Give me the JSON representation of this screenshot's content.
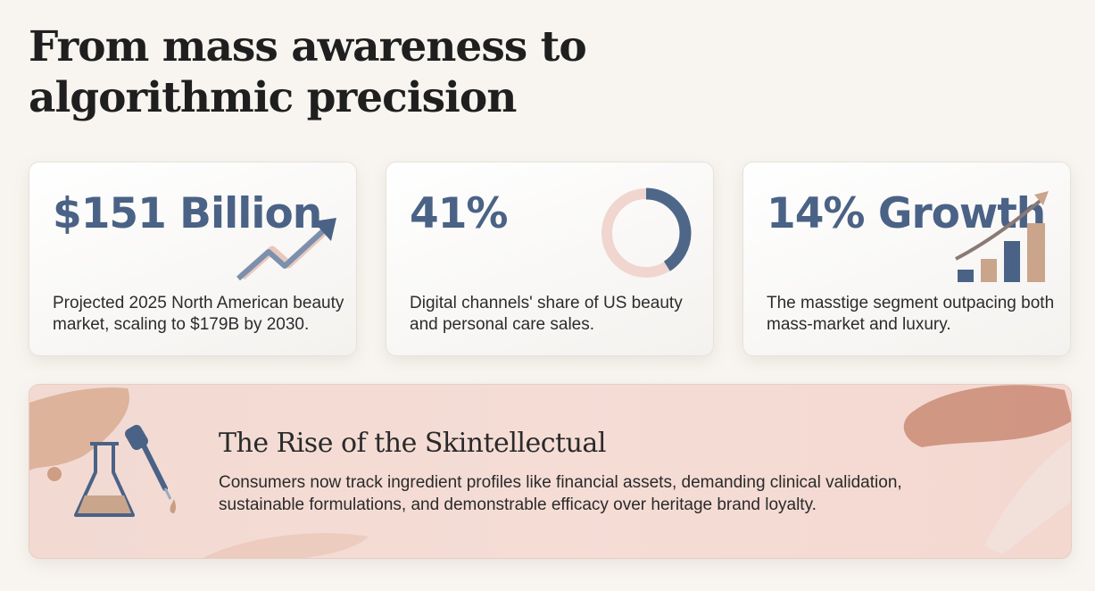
{
  "page": {
    "title": "From mass awareness to algorithmic precision"
  },
  "cards": [
    {
      "metric": "$151 Billion",
      "description": "Projected 2025 North American beauty market, scaling to $179B by 2030.",
      "icon": "trend-arrow-icon"
    },
    {
      "metric": "41%",
      "description": "Digital channels' share of US beauty and personal care sales.",
      "icon": "donut-ring-icon",
      "share_fraction": 0.41
    },
    {
      "metric": "14% Growth",
      "description": "The masstige segment outpacing both mass-market and luxury.",
      "icon": "growth-bars-icon"
    }
  ],
  "banner": {
    "title": "The Rise of the Skintellectual",
    "text": "Consumers now track ingredient profiles like financial assets, demanding clinical validation, sustainable formulations, and demonstrable efficacy over heritage brand loyalty.",
    "icons": [
      "flask-icon",
      "dropper-icon"
    ]
  },
  "colors": {
    "accent_blue": "#4a6285",
    "accent_peach": "#e9c6bc",
    "accent_tan": "#c89f84",
    "background": "#f8f5f0"
  }
}
